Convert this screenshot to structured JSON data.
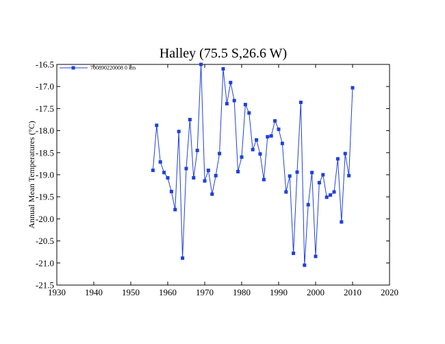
{
  "chart_data": {
    "type": "line",
    "title": "Halley (75.5 S,26.6 W)",
    "xlabel": "",
    "ylabel": "Annual Mean Temperatures (°C)",
    "xlim": [
      1930,
      2020
    ],
    "ylim": [
      -21.5,
      -16.5
    ],
    "xticks": [
      1930,
      1940,
      1950,
      1960,
      1970,
      1980,
      1990,
      2000,
      2010,
      2020
    ],
    "yticks": [
      -16.5,
      -17.0,
      -17.5,
      -18.0,
      -18.5,
      -19.0,
      -19.5,
      -20.0,
      -20.5,
      -21.0,
      -21.5
    ],
    "xtick_labels": [
      "1930",
      "1940",
      "1950",
      "1960",
      "1970",
      "1980",
      "1990",
      "2000",
      "2010",
      "2020"
    ],
    "ytick_labels": [
      "-16.5",
      "-17.0",
      "-17.5",
      "-18.0",
      "-18.5",
      "-19.0",
      "-19.5",
      "-20.0",
      "-20.5",
      "-21.0",
      "-21.5"
    ],
    "grid": false,
    "legend_position": "top-left",
    "series": [
      {
        "name": "700890220008  0 km",
        "color": "#1f3fe0",
        "marker": "square",
        "x": [
          1956,
          1957,
          1958,
          1959,
          1960,
          1961,
          1962,
          1963,
          1964,
          1965,
          1966,
          1967,
          1968,
          1969,
          1970,
          1971,
          1972,
          1973,
          1974,
          1975,
          1976,
          1977,
          1978,
          1979,
          1980,
          1981,
          1982,
          1983,
          1984,
          1985,
          1986,
          1987,
          1988,
          1989,
          1990,
          1991,
          1992,
          1993,
          1994,
          1995,
          1996,
          1997,
          1998,
          1999,
          2000,
          2001,
          2002,
          2003,
          2004,
          2005,
          2006,
          2007,
          2008,
          2009,
          2010
        ],
        "y": [
          -18.9,
          -17.88,
          -18.71,
          -18.95,
          -19.07,
          -19.38,
          -19.79,
          -18.02,
          -20.89,
          -18.86,
          -17.75,
          -19.07,
          -18.45,
          -16.5,
          -19.14,
          -18.9,
          -19.44,
          -19.02,
          -18.52,
          -16.6,
          -17.39,
          -16.91,
          -17.32,
          -18.93,
          -18.6,
          -17.41,
          -17.6,
          -18.43,
          -18.21,
          -18.53,
          -19.11,
          -18.14,
          -18.12,
          -17.78,
          -17.97,
          -18.29,
          -19.39,
          -19.03,
          -20.78,
          -18.94,
          -17.36,
          -21.05,
          -19.68,
          -18.95,
          -20.85,
          -19.18,
          -19.0,
          -19.51,
          -19.46,
          -19.39,
          -18.64,
          -20.07,
          -18.52,
          -19.02,
          -17.03
        ]
      }
    ]
  }
}
